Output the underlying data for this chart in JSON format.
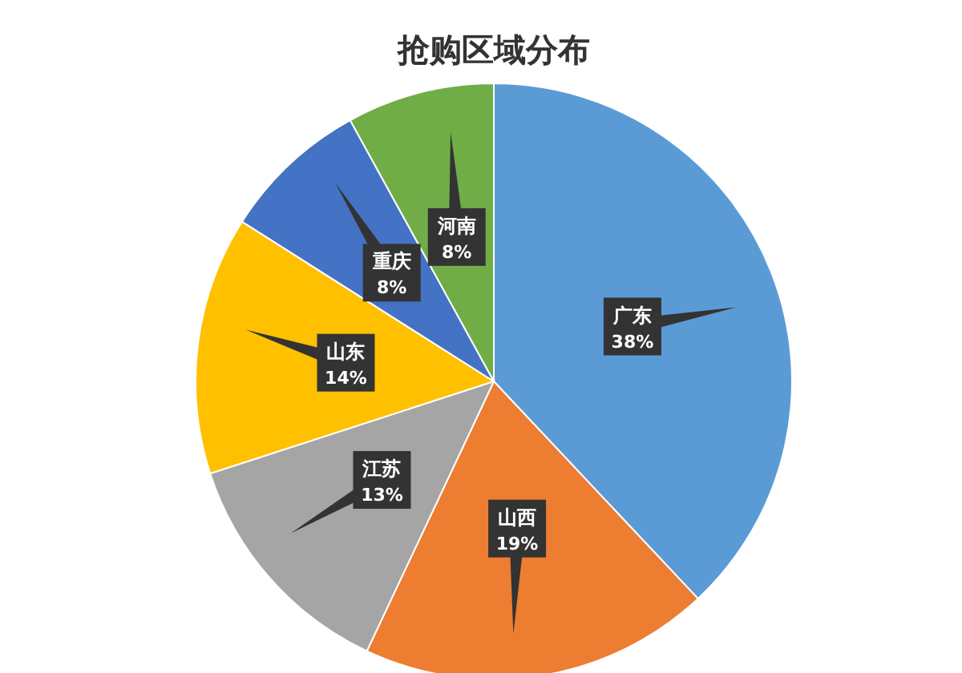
{
  "chart_data": {
    "type": "pie",
    "title": "抢购区域分布",
    "categories": [
      "广东",
      "山西",
      "江苏",
      "山东",
      "重庆",
      "河南"
    ],
    "values": [
      38,
      19,
      13,
      14,
      8,
      8
    ],
    "value_labels": [
      "38%",
      "19%",
      "13%",
      "14%",
      "8%",
      "8%"
    ],
    "colors": [
      "#5b9bd5",
      "#ed7d31",
      "#a5a5a5",
      "#ffc000",
      "#4472c4",
      "#70ad47"
    ]
  }
}
